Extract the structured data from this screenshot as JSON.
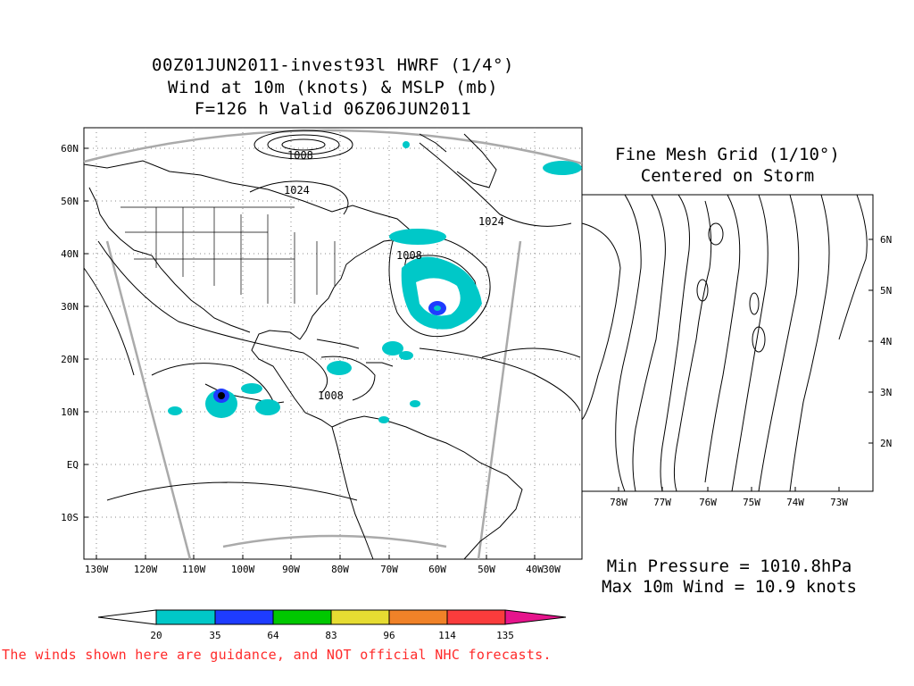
{
  "main_map": {
    "title_lines": [
      "00Z01JUN2011-invest93l HWRF (1/4°)",
      "Wind at 10m (knots) & MSLP (mb)",
      "F=126 h Valid 06Z06JUN2011"
    ],
    "lon_ticks": [
      "130W",
      "120W",
      "110W",
      "100W",
      "90W",
      "80W",
      "70W",
      "60W",
      "50W",
      "40W",
      "30W"
    ],
    "lat_ticks": [
      "60N",
      "50N",
      "40N",
      "30N",
      "20N",
      "10N",
      "EQ",
      "10S"
    ],
    "contour_labels": [
      "1008",
      "1024",
      "1024",
      "1008",
      "1008"
    ]
  },
  "fine_mesh": {
    "title_lines": [
      "Fine Mesh Grid (1/10°)",
      "Centered on Storm"
    ],
    "lon_ticks": [
      "78W",
      "77W",
      "76W",
      "75W",
      "74W",
      "73W"
    ],
    "lat_ticks": [
      "6N",
      "5N",
      "4N",
      "3N",
      "2N"
    ]
  },
  "stats": {
    "min_pressure": "Min Pressure = 1010.8hPa",
    "max_wind": "Max 10m Wind = 10.9 knots"
  },
  "colorbar": {
    "labels": [
      "20",
      "35",
      "64",
      "83",
      "96",
      "114",
      "135"
    ],
    "colors": [
      "#00c8c8",
      "#1e3cff",
      "#00c800",
      "#e6dc32",
      "#f08228",
      "#fa3c3c",
      "#e6148c"
    ]
  },
  "disclaimer": "The winds shown here are guidance, and NOT official NHC forecasts."
}
